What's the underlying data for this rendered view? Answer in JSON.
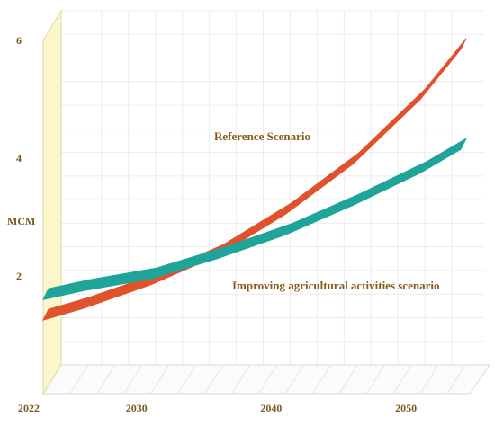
{
  "chart_data": {
    "type": "line",
    "title": "",
    "xlabel": "",
    "ylabel": "MCM",
    "xlim": [
      2022,
      2053
    ],
    "ylim": [
      0,
      6
    ],
    "x_ticks": [
      "2022",
      "2030",
      "2040",
      "2050"
    ],
    "y_ticks": [
      "2",
      "4",
      "6"
    ],
    "grid": true,
    "series": [
      {
        "name": "Reference Scenario",
        "color": "#e0522c",
        "x": [
          2022,
          2025,
          2030,
          2035,
          2040,
          2045,
          2050,
          2053
        ],
        "y": [
          1.25,
          1.45,
          1.85,
          2.35,
          3.05,
          3.9,
          5.0,
          5.85
        ]
      },
      {
        "name": "Improving agricultural activities scenario",
        "color": "#1fa49a",
        "x": [
          2022,
          2025,
          2030,
          2035,
          2040,
          2045,
          2050,
          2053
        ],
        "y": [
          1.6,
          1.75,
          1.95,
          2.3,
          2.7,
          3.2,
          3.75,
          4.15
        ]
      }
    ]
  }
}
